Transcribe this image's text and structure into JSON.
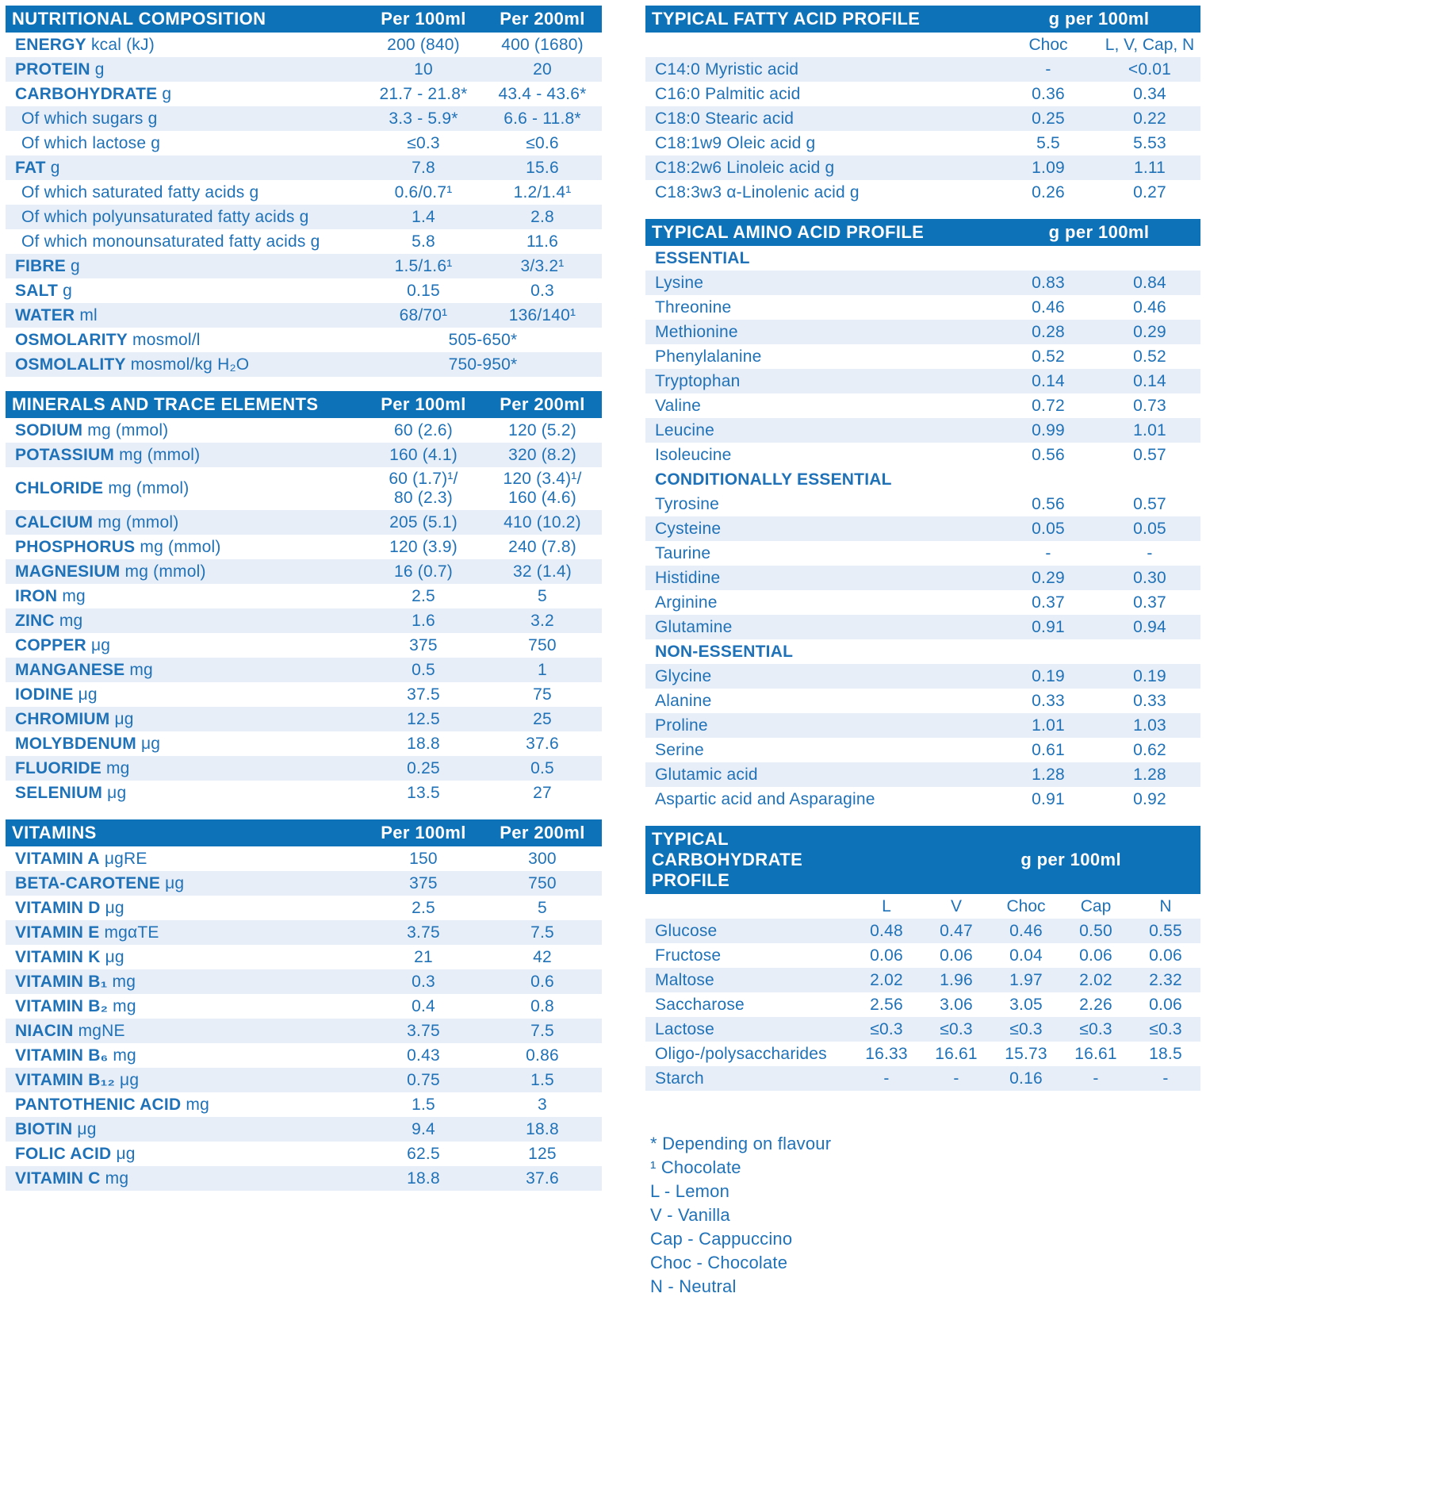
{
  "colors": {
    "header_bar": "#0e72b8",
    "row_shade": "#e8eef7",
    "text_blue": "#1f72b8"
  },
  "left_tables": [
    {
      "title": "NUTRITIONAL COMPOSITION",
      "header_cols": [
        "Per 100ml",
        "Per 200ml"
      ],
      "rows": [
        {
          "b": "ENERGY",
          "r": "kcal (kJ)",
          "values": [
            "200 (840)",
            "400 (1680)"
          ]
        },
        {
          "b": "PROTEIN",
          "r": "g",
          "values": [
            "10",
            "20"
          ]
        },
        {
          "b": "CARBOHYDRATE",
          "r": "g",
          "values": [
            "21.7 - 21.8*",
            "43.4 - 43.6*"
          ]
        },
        {
          "r": "Of which sugars g",
          "indent": true,
          "values": [
            "3.3 - 5.9*",
            "6.6 - 11.8*"
          ]
        },
        {
          "r": "Of which lactose g",
          "indent": true,
          "values": [
            "≤0.3",
            "≤0.6"
          ]
        },
        {
          "b": "FAT",
          "r": "g",
          "values": [
            "7.8",
            "15.6"
          ]
        },
        {
          "r": "Of which saturated fatty acids g",
          "indent": true,
          "values": [
            "0.6/0.7¹",
            "1.2/1.4¹"
          ]
        },
        {
          "r": "Of which polyunsaturated fatty acids g",
          "indent": true,
          "values": [
            "1.4",
            "2.8"
          ]
        },
        {
          "r": "Of which monounsaturated fatty acids g",
          "indent": true,
          "values": [
            "5.8",
            "11.6"
          ]
        },
        {
          "b": "FIBRE",
          "r": "g",
          "values": [
            "1.5/1.6¹",
            "3/3.2¹"
          ]
        },
        {
          "b": "SALT",
          "r": "g",
          "values": [
            "0.15",
            "0.3"
          ]
        },
        {
          "b": "WATER",
          "r": "ml",
          "values": [
            "68/70¹",
            "136/140¹"
          ]
        },
        {
          "b": "OSMOLARITY",
          "r": "mosmol/l",
          "span": "505-650*"
        },
        {
          "b": "OSMOLALITY",
          "r": "mosmol/kg H₂O",
          "span": "750-950*"
        }
      ]
    },
    {
      "title": "MINERALS AND TRACE ELEMENTS",
      "header_cols": [
        "Per 100ml",
        "Per 200ml"
      ],
      "rows": [
        {
          "b": "SODIUM",
          "r": "mg (mmol)",
          "values": [
            "60 (2.6)",
            "120 (5.2)"
          ]
        },
        {
          "b": "POTASSIUM",
          "r": "mg (mmol)",
          "values": [
            "160 (4.1)",
            "320 (8.2)"
          ]
        },
        {
          "b": "CHLORIDE",
          "r": "mg (mmol)",
          "values": [
            "60 (1.7)¹/\n80 (2.3)",
            "120 (3.4)¹/\n160 (4.6)"
          ]
        },
        {
          "b": "CALCIUM",
          "r": "mg (mmol)",
          "values": [
            "205 (5.1)",
            "410 (10.2)"
          ]
        },
        {
          "b": "PHOSPHORUS",
          "r": "mg (mmol)",
          "values": [
            "120 (3.9)",
            "240 (7.8)"
          ]
        },
        {
          "b": "MAGNESIUM",
          "r": "mg (mmol)",
          "values": [
            "16 (0.7)",
            "32 (1.4)"
          ]
        },
        {
          "b": "IRON",
          "r": "mg",
          "values": [
            "2.5",
            "5"
          ]
        },
        {
          "b": "ZINC",
          "r": "mg",
          "values": [
            "1.6",
            "3.2"
          ]
        },
        {
          "b": "COPPER",
          "r": "μg",
          "values": [
            "375",
            "750"
          ]
        },
        {
          "b": "MANGANESE",
          "r": "mg",
          "values": [
            "0.5",
            "1"
          ]
        },
        {
          "b": "IODINE",
          "r": "μg",
          "values": [
            "37.5",
            "75"
          ]
        },
        {
          "b": "CHROMIUM",
          "r": "μg",
          "values": [
            "12.5",
            "25"
          ]
        },
        {
          "b": "MOLYBDENUM",
          "r": "μg",
          "values": [
            "18.8",
            "37.6"
          ]
        },
        {
          "b": "FLUORIDE",
          "r": "mg",
          "values": [
            "0.25",
            "0.5"
          ]
        },
        {
          "b": "SELENIUM",
          "r": "μg",
          "values": [
            "13.5",
            "27"
          ]
        }
      ]
    },
    {
      "title": "VITAMINS",
      "header_cols": [
        "Per 100ml",
        "Per 200ml"
      ],
      "rows": [
        {
          "b": "VITAMIN A",
          "r": "μgRE",
          "values": [
            "150",
            "300"
          ]
        },
        {
          "b": "BETA-CAROTENE",
          "r": "μg",
          "values": [
            "375",
            "750"
          ]
        },
        {
          "b": "VITAMIN D",
          "r": "μg",
          "values": [
            "2.5",
            "5"
          ]
        },
        {
          "b": "VITAMIN E",
          "r": "mgαTE",
          "values": [
            "3.75",
            "7.5"
          ]
        },
        {
          "b": "VITAMIN K",
          "r": "μg",
          "values": [
            "21",
            "42"
          ]
        },
        {
          "b": "VITAMIN B₁",
          "r": "mg",
          "values": [
            "0.3",
            "0.6"
          ]
        },
        {
          "b": "VITAMIN B₂",
          "r": "mg",
          "values": [
            "0.4",
            "0.8"
          ]
        },
        {
          "b": "NIACIN",
          "r": "mgNE",
          "values": [
            "3.75",
            "7.5"
          ]
        },
        {
          "b": "VITAMIN B₆",
          "r": "mg",
          "values": [
            "0.43",
            "0.86"
          ]
        },
        {
          "b": "VITAMIN B₁₂",
          "r": "μg",
          "values": [
            "0.75",
            "1.5"
          ]
        },
        {
          "b": "PANTOTHENIC ACID",
          "r": "mg",
          "values": [
            "1.5",
            "3"
          ]
        },
        {
          "b": "BIOTIN",
          "r": "μg",
          "values": [
            "9.4",
            "18.8"
          ]
        },
        {
          "b": "FOLIC ACID",
          "r": "μg",
          "values": [
            "62.5",
            "125"
          ]
        },
        {
          "b": "VITAMIN C",
          "r": "mg",
          "values": [
            "18.8",
            "37.6"
          ]
        }
      ]
    }
  ],
  "right_tables": [
    {
      "title": "TYPICAL FATTY ACID PROFILE",
      "unit": "g per 100ml",
      "sub_cols": [
        "Choc",
        "L, V, Cap, N"
      ],
      "rows": [
        {
          "r": "C14:0 Myristic acid",
          "values": [
            "-",
            "<0.01"
          ]
        },
        {
          "r": "C16:0 Palmitic acid",
          "values": [
            "0.36",
            "0.34"
          ]
        },
        {
          "r": "C18:0 Stearic acid",
          "values": [
            "0.25",
            "0.22"
          ]
        },
        {
          "r": "C18:1w9 Oleic acid g",
          "values": [
            "5.5",
            "5.53"
          ]
        },
        {
          "r": "C18:2w6 Linoleic acid g",
          "values": [
            "1.09",
            "1.11"
          ]
        },
        {
          "r": "C18:3w3 α-Linolenic acid g",
          "values": [
            "0.26",
            "0.27"
          ]
        }
      ]
    },
    {
      "title": "TYPICAL AMINO ACID PROFILE",
      "unit": "g per 100ml",
      "rows": [
        {
          "sub": "ESSENTIAL"
        },
        {
          "r": "Lysine",
          "values": [
            "0.83",
            "0.84"
          ]
        },
        {
          "r": "Threonine",
          "values": [
            "0.46",
            "0.46"
          ]
        },
        {
          "r": "Methionine",
          "values": [
            "0.28",
            "0.29"
          ]
        },
        {
          "r": "Phenylalanine",
          "values": [
            "0.52",
            "0.52"
          ]
        },
        {
          "r": "Tryptophan",
          "values": [
            "0.14",
            "0.14"
          ]
        },
        {
          "r": "Valine",
          "values": [
            "0.72",
            "0.73"
          ]
        },
        {
          "r": "Leucine",
          "values": [
            "0.99",
            "1.01"
          ]
        },
        {
          "r": "Isoleucine",
          "values": [
            "0.56",
            "0.57"
          ]
        },
        {
          "sub": "CONDITIONALLY ESSENTIAL"
        },
        {
          "r": "Tyrosine",
          "values": [
            "0.56",
            "0.57"
          ]
        },
        {
          "r": "Cysteine",
          "values": [
            "0.05",
            "0.05"
          ]
        },
        {
          "r": "Taurine",
          "values": [
            "-",
            "-"
          ]
        },
        {
          "r": "Histidine",
          "values": [
            "0.29",
            "0.30"
          ]
        },
        {
          "r": "Arginine",
          "values": [
            "0.37",
            "0.37"
          ]
        },
        {
          "r": "Glutamine",
          "values": [
            "0.91",
            "0.94"
          ]
        },
        {
          "sub": "NON-ESSENTIAL"
        },
        {
          "r": "Glycine",
          "values": [
            "0.19",
            "0.19"
          ]
        },
        {
          "r": "Alanine",
          "values": [
            "0.33",
            "0.33"
          ]
        },
        {
          "r": "Proline",
          "values": [
            "1.01",
            "1.03"
          ]
        },
        {
          "r": "Serine",
          "values": [
            "0.61",
            "0.62"
          ]
        },
        {
          "r": "Glutamic acid",
          "values": [
            "1.28",
            "1.28"
          ]
        },
        {
          "r": "Aspartic acid and Asparagine",
          "values": [
            "0.91",
            "0.92"
          ]
        }
      ]
    },
    {
      "title": "TYPICAL CARBOHYDRATE PROFILE",
      "unit": "g per 100ml",
      "unit_right": true,
      "sub_cols": [
        "L",
        "V",
        "Choc",
        "Cap",
        "N"
      ],
      "rows": [
        {
          "r": "Glucose",
          "values": [
            "0.48",
            "0.47",
            "0.46",
            "0.50",
            "0.55"
          ]
        },
        {
          "r": "Fructose",
          "values": [
            "0.06",
            "0.06",
            "0.04",
            "0.06",
            "0.06"
          ]
        },
        {
          "r": "Maltose",
          "values": [
            "2.02",
            "1.96",
            "1.97",
            "2.02",
            "2.32"
          ]
        },
        {
          "r": "Saccharose",
          "values": [
            "2.56",
            "3.06",
            "3.05",
            "2.26",
            "0.06"
          ]
        },
        {
          "r": "Lactose",
          "values": [
            "≤0.3",
            "≤0.3",
            "≤0.3",
            "≤0.3",
            "≤0.3"
          ]
        },
        {
          "r": "Oligo-/polysaccharides",
          "values": [
            "16.33",
            "16.61",
            "15.73",
            "16.61",
            "18.5"
          ]
        },
        {
          "r": "Starch",
          "values": [
            "-",
            "-",
            "0.16",
            "-",
            "-"
          ]
        }
      ]
    }
  ],
  "footnotes": [
    "* Depending on flavour",
    "¹ Chocolate",
    "L - Lemon",
    "V - Vanilla",
    "Cap - Cappuccino",
    "Choc - Chocolate",
    "N - Neutral"
  ]
}
